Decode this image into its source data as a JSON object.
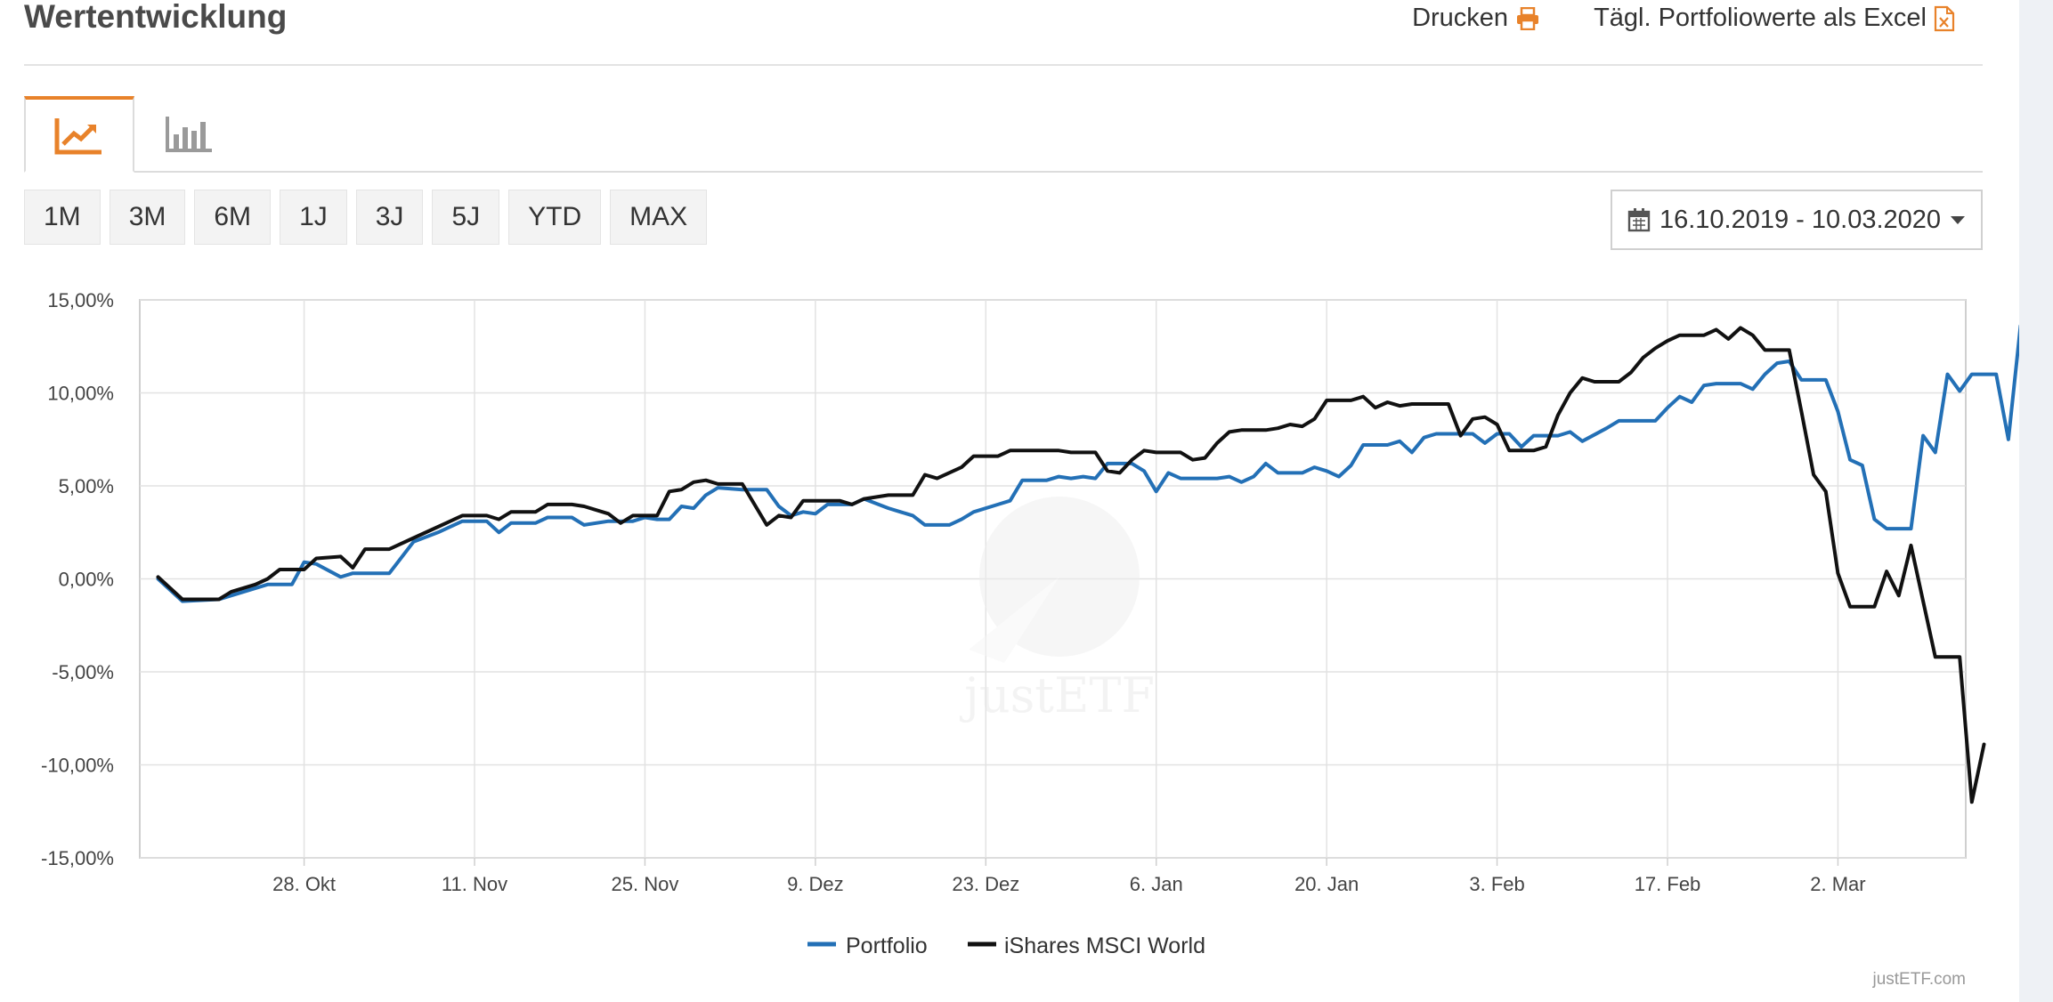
{
  "header": {
    "title": "Wertentwicklung",
    "print_label": "Drucken",
    "excel_label": "Tägl. Portfoliowerte als Excel"
  },
  "colors": {
    "accent": "#e8822a",
    "portfolio": "#2370b6",
    "benchmark": "#111111",
    "grid": "#e2e2e2"
  },
  "periods": [
    "1M",
    "3M",
    "6M",
    "1J",
    "3J",
    "5J",
    "YTD",
    "MAX"
  ],
  "date_range": "16.10.2019 - 10.03.2020",
  "chart_data": {
    "type": "line",
    "title": "",
    "xlabel": "",
    "ylabel": "",
    "ylim": [
      -15,
      15
    ],
    "y_ticks": [
      "15,00%",
      "10,00%",
      "5,00%",
      "0,00%",
      "-5,00%",
      "-10,00%",
      "-15,00%"
    ],
    "y_tick_values": [
      15,
      10,
      5,
      0,
      -5,
      -10,
      -15
    ],
    "x_ticks": [
      "28. Okt",
      "11. Nov",
      "25. Nov",
      "9. Dez",
      "23. Dez",
      "6. Jan",
      "20. Jan",
      "3. Feb",
      "17. Feb",
      "2. Mar"
    ],
    "x_tick_positions": [
      12,
      26,
      40,
      54,
      68,
      82,
      96,
      110,
      124,
      138
    ],
    "x_range": [
      -1.5,
      148.5
    ],
    "watermark": "justETF",
    "series": [
      {
        "name": "Portfolio",
        "color": "#2370b6",
        "points": [
          [
            0,
            0
          ],
          [
            2,
            -1.2
          ],
          [
            5,
            -1.1
          ],
          [
            9,
            -0.3
          ],
          [
            11,
            -0.3
          ],
          [
            12,
            0.9
          ],
          [
            13,
            0.8
          ],
          [
            15,
            0.1
          ],
          [
            16,
            0.3
          ],
          [
            19,
            0.3
          ],
          [
            21,
            2
          ],
          [
            23,
            2.5
          ],
          [
            25,
            3.1
          ],
          [
            27,
            3.1
          ],
          [
            28,
            2.5
          ],
          [
            29,
            3
          ],
          [
            31,
            3
          ],
          [
            32,
            3.3
          ],
          [
            34,
            3.3
          ],
          [
            35,
            2.9
          ],
          [
            37,
            3.1
          ],
          [
            39,
            3.1
          ],
          [
            40,
            3.3
          ],
          [
            41,
            3.2
          ],
          [
            42,
            3.2
          ],
          [
            43,
            3.9
          ],
          [
            44,
            3.8
          ],
          [
            45,
            4.5
          ],
          [
            46,
            4.9
          ],
          [
            48,
            4.8
          ],
          [
            50,
            4.8
          ],
          [
            51,
            3.9
          ],
          [
            52,
            3.4
          ],
          [
            53,
            3.6
          ],
          [
            54,
            3.5
          ],
          [
            55,
            4
          ],
          [
            57,
            4
          ],
          [
            58,
            4.3
          ],
          [
            60,
            3.8
          ],
          [
            61,
            3.6
          ],
          [
            62,
            3.4
          ],
          [
            63,
            2.9
          ],
          [
            65,
            2.9
          ],
          [
            66,
            3.2
          ],
          [
            67,
            3.6
          ],
          [
            69,
            4
          ],
          [
            70,
            4.2
          ],
          [
            71,
            5.3
          ],
          [
            73,
            5.3
          ],
          [
            74,
            5.5
          ],
          [
            75,
            5.4
          ],
          [
            76,
            5.5
          ],
          [
            77,
            5.4
          ],
          [
            78,
            6.2
          ],
          [
            80,
            6.2
          ],
          [
            81,
            5.8
          ],
          [
            82,
            4.7
          ],
          [
            83,
            5.7
          ],
          [
            84,
            5.4
          ],
          [
            86,
            5.4
          ],
          [
            87,
            5.4
          ],
          [
            88,
            5.5
          ],
          [
            89,
            5.2
          ],
          [
            90,
            5.5
          ],
          [
            91,
            6.2
          ],
          [
            92,
            5.7
          ],
          [
            94,
            5.7
          ],
          [
            95,
            6
          ],
          [
            96,
            5.8
          ],
          [
            97,
            5.5
          ],
          [
            98,
            6.1
          ],
          [
            99,
            7.2
          ],
          [
            101,
            7.2
          ],
          [
            102,
            7.4
          ],
          [
            103,
            6.8
          ],
          [
            104,
            7.6
          ],
          [
            105,
            7.8
          ],
          [
            108,
            7.8
          ],
          [
            109,
            7.3
          ],
          [
            110,
            7.8
          ],
          [
            111,
            7.8
          ],
          [
            112,
            7.1
          ],
          [
            113,
            7.7
          ],
          [
            115,
            7.7
          ],
          [
            116,
            7.9
          ],
          [
            117,
            7.4
          ],
          [
            119,
            8.1
          ],
          [
            120,
            8.5
          ],
          [
            123,
            8.5
          ],
          [
            124,
            9.2
          ],
          [
            125,
            9.8
          ],
          [
            126,
            9.5
          ],
          [
            127,
            10.4
          ],
          [
            128,
            10.5
          ],
          [
            130,
            10.5
          ],
          [
            131,
            10.2
          ],
          [
            132,
            11
          ],
          [
            133,
            11.6
          ],
          [
            134,
            11.7
          ],
          [
            135,
            10.7
          ],
          [
            137,
            10.7
          ],
          [
            138,
            9
          ],
          [
            139,
            6.4
          ],
          [
            140,
            6.1
          ],
          [
            141,
            3.2
          ],
          [
            142,
            2.7
          ],
          [
            144,
            2.7
          ],
          [
            145,
            7.7
          ],
          [
            146,
            6.8
          ],
          [
            147,
            11
          ],
          [
            148,
            10.1
          ],
          [
            149,
            11
          ],
          [
            151,
            11
          ],
          [
            152,
            7.5
          ],
          [
            153,
            13.6
          ]
        ]
      },
      {
        "name": "iShares MSCI World",
        "color": "#111111",
        "points": [
          [
            0,
            0.1
          ],
          [
            2,
            -1.1
          ],
          [
            5,
            -1.1
          ],
          [
            6,
            -0.7
          ],
          [
            8,
            -0.3
          ],
          [
            9,
            0
          ],
          [
            10,
            0.5
          ],
          [
            12,
            0.5
          ],
          [
            13,
            1.1
          ],
          [
            15,
            1.2
          ],
          [
            16,
            0.6
          ],
          [
            17,
            1.6
          ],
          [
            19,
            1.6
          ],
          [
            21,
            2.2
          ],
          [
            23,
            2.8
          ],
          [
            25,
            3.4
          ],
          [
            27,
            3.4
          ],
          [
            28,
            3.2
          ],
          [
            29,
            3.6
          ],
          [
            31,
            3.6
          ],
          [
            32,
            4
          ],
          [
            34,
            4
          ],
          [
            35,
            3.9
          ],
          [
            37,
            3.5
          ],
          [
            38,
            3
          ],
          [
            39,
            3.4
          ],
          [
            41,
            3.4
          ],
          [
            42,
            4.7
          ],
          [
            43,
            4.8
          ],
          [
            44,
            5.2
          ],
          [
            45,
            5.3
          ],
          [
            46,
            5.1
          ],
          [
            48,
            5.1
          ],
          [
            49,
            4
          ],
          [
            50,
            2.9
          ],
          [
            51,
            3.4
          ],
          [
            52,
            3.3
          ],
          [
            53,
            4.2
          ],
          [
            56,
            4.2
          ],
          [
            57,
            4
          ],
          [
            58,
            4.3
          ],
          [
            59,
            4.4
          ],
          [
            60,
            4.5
          ],
          [
            62,
            4.5
          ],
          [
            63,
            5.6
          ],
          [
            64,
            5.4
          ],
          [
            66,
            6
          ],
          [
            67,
            6.6
          ],
          [
            68,
            6.6
          ],
          [
            69,
            6.6
          ],
          [
            70,
            6.9
          ],
          [
            74,
            6.9
          ],
          [
            75,
            6.8
          ],
          [
            77,
            6.8
          ],
          [
            78,
            5.8
          ],
          [
            79,
            5.7
          ],
          [
            80,
            6.4
          ],
          [
            81,
            6.9
          ],
          [
            82,
            6.8
          ],
          [
            84,
            6.8
          ],
          [
            85,
            6.4
          ],
          [
            86,
            6.5
          ],
          [
            87,
            7.3
          ],
          [
            88,
            7.9
          ],
          [
            89,
            8
          ],
          [
            91,
            8
          ],
          [
            92,
            8.1
          ],
          [
            93,
            8.3
          ],
          [
            94,
            8.2
          ],
          [
            95,
            8.6
          ],
          [
            96,
            9.6
          ],
          [
            98,
            9.6
          ],
          [
            99,
            9.8
          ],
          [
            100,
            9.2
          ],
          [
            101,
            9.5
          ],
          [
            102,
            9.3
          ],
          [
            103,
            9.4
          ],
          [
            106,
            9.4
          ],
          [
            107,
            7.7
          ],
          [
            108,
            8.6
          ],
          [
            109,
            8.7
          ],
          [
            110,
            8.3
          ],
          [
            111,
            6.9
          ],
          [
            113,
            6.9
          ],
          [
            114,
            7.1
          ],
          [
            115,
            8.8
          ],
          [
            116,
            10
          ],
          [
            117,
            10.8
          ],
          [
            118,
            10.6
          ],
          [
            120,
            10.6
          ],
          [
            121,
            11.1
          ],
          [
            122,
            11.9
          ],
          [
            123,
            12.4
          ],
          [
            124,
            12.8
          ],
          [
            125,
            13.1
          ],
          [
            127,
            13.1
          ],
          [
            128,
            13.4
          ],
          [
            129,
            12.9
          ],
          [
            130,
            13.5
          ],
          [
            131,
            13.1
          ],
          [
            132,
            12.3
          ],
          [
            134,
            12.3
          ],
          [
            135,
            9
          ],
          [
            136,
            5.6
          ],
          [
            137,
            4.7
          ],
          [
            138,
            0.3
          ],
          [
            139,
            -1.5
          ],
          [
            141,
            -1.5
          ],
          [
            142,
            0.4
          ],
          [
            143,
            -0.9
          ],
          [
            144,
            1.8
          ],
          [
            145,
            -1.2
          ],
          [
            146,
            -4.2
          ],
          [
            148,
            -4.2
          ],
          [
            149,
            -12
          ],
          [
            150,
            -8.9
          ]
        ]
      }
    ]
  },
  "legend": {
    "portfolio_label": "Portfolio",
    "benchmark_label": "iShares MSCI World"
  },
  "credit": "justETF.com"
}
